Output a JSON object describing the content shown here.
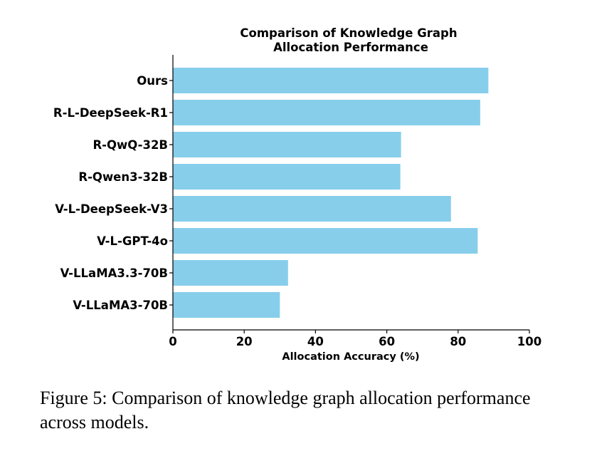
{
  "chart_data": {
    "type": "bar",
    "orientation": "horizontal",
    "title_lines": [
      "Comparison of Knowledge Graph",
      "Allocation Performance"
    ],
    "categories": [
      "Ours",
      "R-L-DeepSeek-R1",
      "R-QwQ-32B",
      "R-Qwen3-32B",
      "V-L-DeepSeek-V3",
      "V-L-GPT-4o",
      "V-LLaMA3.3-70B",
      "V-LLaMA3-70B"
    ],
    "values": [
      88.5,
      86.2,
      64.0,
      63.8,
      78.0,
      85.5,
      32.3,
      30.0
    ],
    "xlabel": "Allocation Accuracy (%)",
    "ylabel": "",
    "xlim": [
      0,
      100
    ],
    "xticks": [
      "0",
      "20",
      "40",
      "60",
      "80",
      "100"
    ],
    "grid": false,
    "bar_color": "#87ceeb"
  },
  "caption": "Figure 5: Comparison of knowledge graph allocation performance across models."
}
